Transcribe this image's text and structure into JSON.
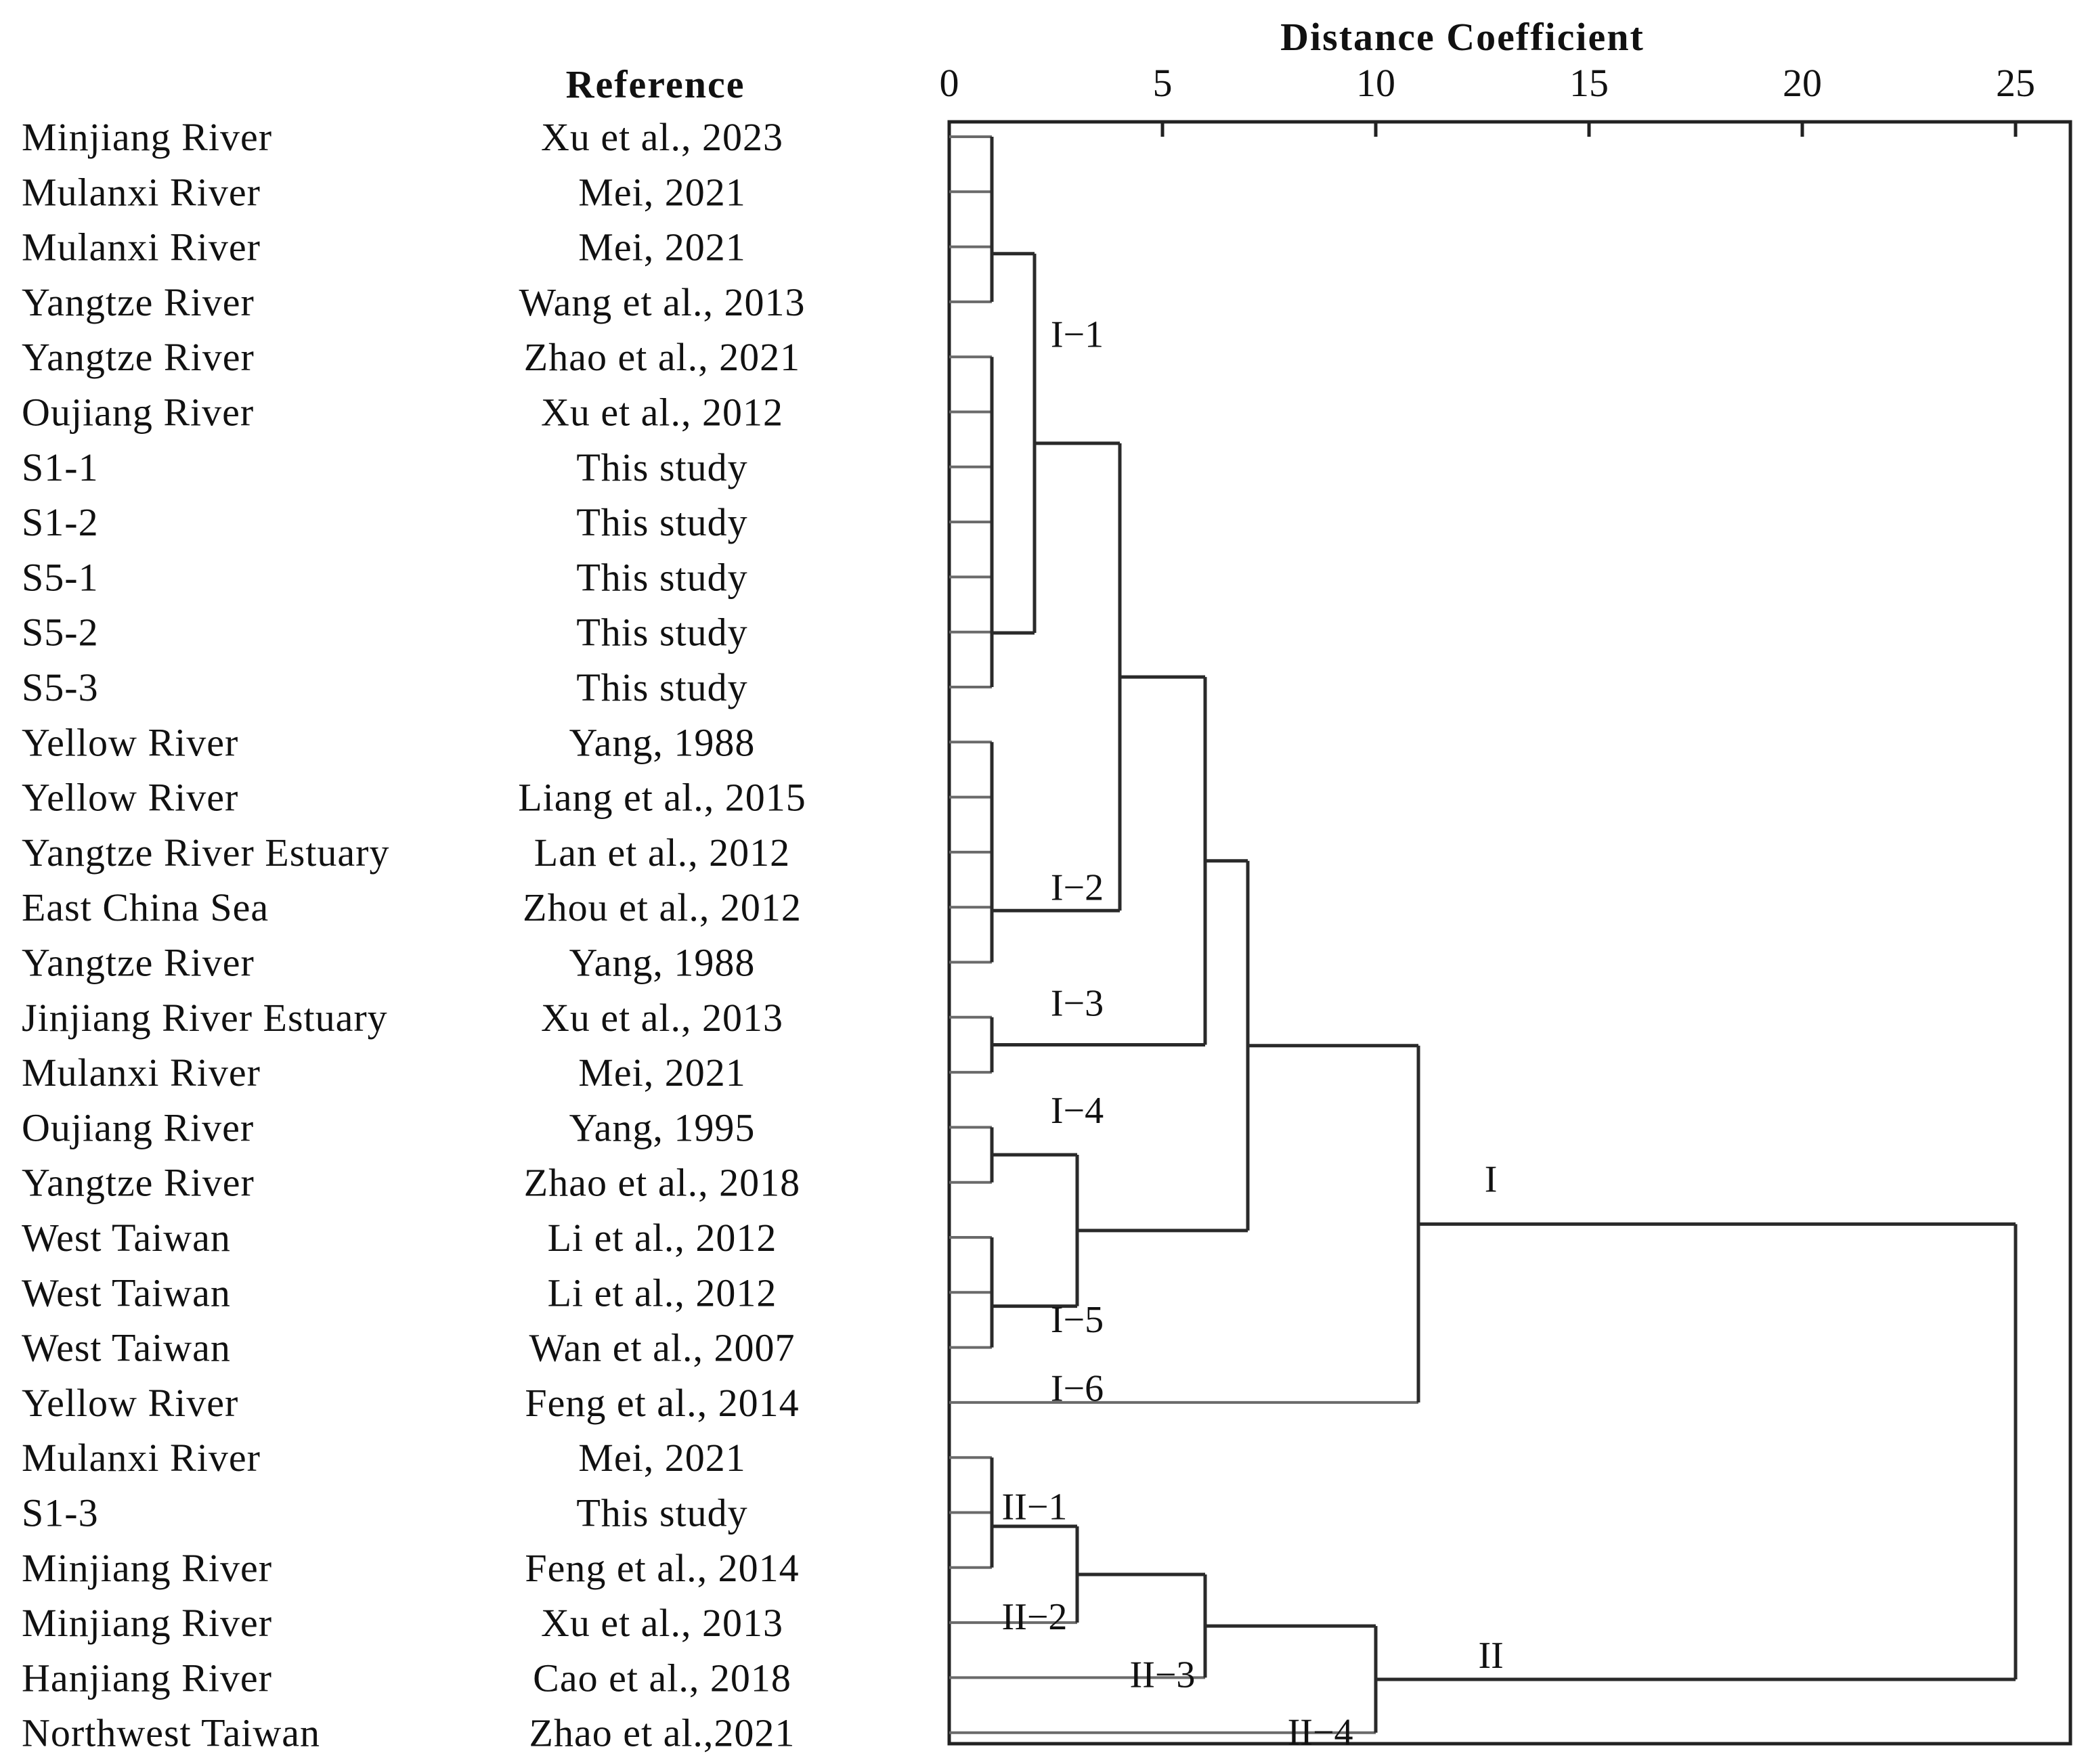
{
  "chart_data": {
    "type": "dendrogram",
    "title": "Distance Coefficient",
    "reference_header": "Reference",
    "xlim": [
      0,
      25
    ],
    "ticks": [
      0,
      5,
      10,
      15,
      20,
      25
    ],
    "samples": [
      {
        "name": "Minjiang River",
        "reference": "Xu et al., 2023"
      },
      {
        "name": "Mulanxi River",
        "reference": "Mei, 2021"
      },
      {
        "name": "Mulanxi River",
        "reference": "Mei, 2021"
      },
      {
        "name": "Yangtze River",
        "reference": "Wang et al., 2013"
      },
      {
        "name": "Yangtze River",
        "reference": "Zhao et al., 2021"
      },
      {
        "name": "Oujiang River",
        "reference": "Xu et al., 2012"
      },
      {
        "name": "S1-1",
        "reference": "This study"
      },
      {
        "name": "S1-2",
        "reference": "This study"
      },
      {
        "name": "S5-1",
        "reference": "This study"
      },
      {
        "name": "S5-2",
        "reference": "This study"
      },
      {
        "name": "S5-3",
        "reference": "This study"
      },
      {
        "name": "Yellow River",
        "reference": "Yang, 1988"
      },
      {
        "name": "Yellow River",
        "reference": "Liang et al., 2015"
      },
      {
        "name": "Yangtze River Estuary",
        "reference": "Lan et al., 2012"
      },
      {
        "name": "East China Sea",
        "reference": "Zhou et al., 2012"
      },
      {
        "name": "Yangtze River",
        "reference": "Yang, 1988"
      },
      {
        "name": "Jinjiang River Estuary",
        "reference": "Xu et al., 2013"
      },
      {
        "name": "Mulanxi River",
        "reference": "Mei, 2021"
      },
      {
        "name": "Oujiang River",
        "reference": "Yang, 1995"
      },
      {
        "name": "Yangtze River",
        "reference": "Zhao et al., 2018"
      },
      {
        "name": "West Taiwan",
        "reference": "Li et al., 2012"
      },
      {
        "name": "West Taiwan",
        "reference": "Li et al., 2012"
      },
      {
        "name": "West Taiwan",
        "reference": "Wan et al., 2007"
      },
      {
        "name": "Yellow River",
        "reference": "Feng et al., 2014"
      },
      {
        "name": "Mulanxi River",
        "reference": "Mei, 2021"
      },
      {
        "name": "S1-3",
        "reference": "This study"
      },
      {
        "name": "Minjiang River",
        "reference": "Feng et al., 2014"
      },
      {
        "name": "Minjiang River",
        "reference": "Xu et al., 2013"
      },
      {
        "name": "Hanjiang River",
        "reference": "Cao et al., 2018"
      },
      {
        "name": "Northwest Taiwan",
        "reference": "Zhao et al.,2021"
      }
    ],
    "merges": [
      {
        "a": "L0",
        "b": "L1",
        "d": 1,
        "id": "n1"
      },
      {
        "a": "n1",
        "b": "L2",
        "d": 1,
        "id": "n2"
      },
      {
        "a": "n2",
        "b": "L3",
        "d": 1,
        "id": "n3"
      },
      {
        "a": "L4",
        "b": "L5",
        "d": 1,
        "id": "n4"
      },
      {
        "a": "n4",
        "b": "L6",
        "d": 1,
        "id": "n5"
      },
      {
        "a": "n5",
        "b": "L7",
        "d": 1,
        "id": "n6"
      },
      {
        "a": "n6",
        "b": "L8",
        "d": 1,
        "id": "n7"
      },
      {
        "a": "n7",
        "b": "L9",
        "d": 1,
        "id": "n8"
      },
      {
        "a": "n8",
        "b": "L10",
        "d": 1,
        "id": "n9"
      },
      {
        "a": "n3",
        "b": "n9",
        "d": 2,
        "id": "n10"
      },
      {
        "a": "L11",
        "b": "L12",
        "d": 1,
        "id": "n11"
      },
      {
        "a": "n11",
        "b": "L13",
        "d": 1,
        "id": "n12"
      },
      {
        "a": "n12",
        "b": "L14",
        "d": 1,
        "id": "n13"
      },
      {
        "a": "n13",
        "b": "L15",
        "d": 1,
        "id": "n14"
      },
      {
        "a": "n10",
        "b": "n14",
        "d": 4,
        "id": "n15"
      },
      {
        "a": "L16",
        "b": "L17",
        "d": 1,
        "id": "n16"
      },
      {
        "a": "n15",
        "b": "n16",
        "d": 6,
        "id": "n17"
      },
      {
        "a": "L18",
        "b": "L19",
        "d": 1,
        "id": "n18"
      },
      {
        "a": "L20",
        "b": "L21",
        "d": 1,
        "id": "n19"
      },
      {
        "a": "n19",
        "b": "L22",
        "d": 1,
        "id": "n20"
      },
      {
        "a": "n18",
        "b": "n20",
        "d": 3,
        "id": "n21"
      },
      {
        "a": "n17",
        "b": "n21",
        "d": 7,
        "id": "n22"
      },
      {
        "a": "n22",
        "b": "L23",
        "d": 11,
        "id": "n23"
      },
      {
        "a": "L24",
        "b": "L25",
        "d": 1,
        "id": "n24"
      },
      {
        "a": "n24",
        "b": "L26",
        "d": 1,
        "id": "n25"
      },
      {
        "a": "n25",
        "b": "L27",
        "d": 3,
        "id": "n26"
      },
      {
        "a": "n26",
        "b": "L28",
        "d": 6,
        "id": "n27"
      },
      {
        "a": "n27",
        "b": "L29",
        "d": 10,
        "id": "n28"
      },
      {
        "a": "n23",
        "b": "n28",
        "d": 25,
        "id": "n29"
      }
    ],
    "cluster_labels": [
      {
        "text": "I−1",
        "d": 3,
        "row": 3.6
      },
      {
        "text": "I−2",
        "d": 3,
        "row": 13.65
      },
      {
        "text": "I−3",
        "d": 3,
        "row": 15.75
      },
      {
        "text": "I−4",
        "d": 3,
        "row": 17.7
      },
      {
        "text": "I−5",
        "d": 3,
        "row": 21.5
      },
      {
        "text": "I−6",
        "d": 3,
        "row": 22.75
      },
      {
        "text": "I",
        "d": 12.7,
        "row": 18.95
      },
      {
        "text": "II−1",
        "d": 2,
        "row": 24.9
      },
      {
        "text": "II−2",
        "d": 2,
        "row": 26.9
      },
      {
        "text": "II−3",
        "d": 5,
        "row": 27.95
      },
      {
        "text": "II−4",
        "d": 8.7,
        "row": 29.0
      },
      {
        "text": "II",
        "d": 12.7,
        "row": 27.6
      }
    ]
  }
}
